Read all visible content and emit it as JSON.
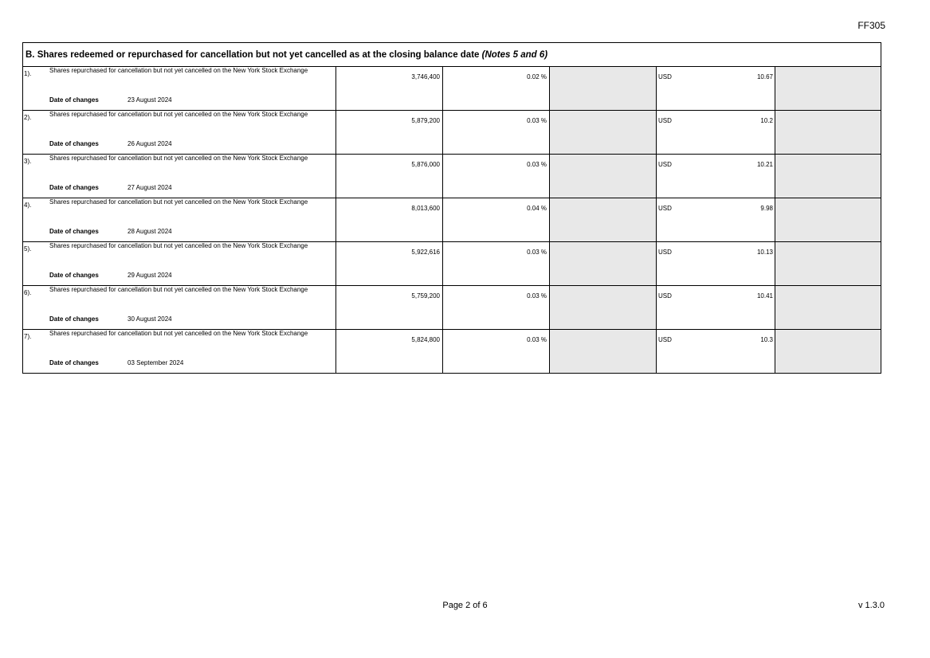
{
  "form_code": "FF305",
  "section": {
    "title": "B. Shares redeemed or repurchased for cancellation but not yet cancelled as at the closing balance date",
    "notes": "(Notes 5 and 6)"
  },
  "date_label": "Date of changes",
  "colors": {
    "grey_cell": "#e8e8e8"
  },
  "rows": [
    {
      "index": "1).",
      "description": "Shares repurchased for cancellation but not yet cancelled on the New York Stock Exchange",
      "shares": "3,746,400",
      "percent": "0.02 %",
      "currency": "USD",
      "price": "10.67",
      "date": "23 August 2024"
    },
    {
      "index": "2).",
      "description": "Shares repurchased for cancellation but not yet cancelled on the New York Stock Exchange",
      "shares": "5,879,200",
      "percent": "0.03 %",
      "currency": "USD",
      "price": "10.2",
      "date": "26 August 2024"
    },
    {
      "index": "3).",
      "description": "Shares repurchased for cancellation but not yet cancelled on the New York Stock Exchange",
      "shares": "5,876,000",
      "percent": "0.03 %",
      "currency": "USD",
      "price": "10.21",
      "date": "27 August 2024"
    },
    {
      "index": "4).",
      "description": "Shares repurchased for cancellation but not yet cancelled on the New York Stock Exchange",
      "shares": "8,013,600",
      "percent": "0.04 %",
      "currency": "USD",
      "price": "9.98",
      "date": "28 August 2024"
    },
    {
      "index": "5).",
      "description": "Shares repurchased for cancellation but not yet cancelled on the New York Stock Exchange",
      "shares": "5,922,616",
      "percent": "0.03 %",
      "currency": "USD",
      "price": "10.13",
      "date": "29 August 2024"
    },
    {
      "index": "6).",
      "description": "Shares repurchased for cancellation but not yet cancelled on the New York Stock Exchange",
      "shares": "5,759,200",
      "percent": "0.03 %",
      "currency": "USD",
      "price": "10.41",
      "date": "30 August 2024"
    },
    {
      "index": "7).",
      "description": "Shares repurchased for cancellation but not yet cancelled on the New York Stock Exchange",
      "shares": "5,824,800",
      "percent": "0.03 %",
      "currency": "USD",
      "price": "10.3",
      "date": "03 September 2024"
    }
  ],
  "footer": {
    "page": "Page 2 of 6",
    "version": "v 1.3.0"
  }
}
